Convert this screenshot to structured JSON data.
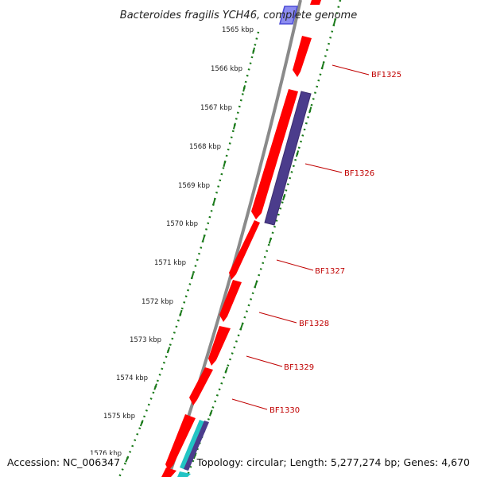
{
  "map": {
    "title": "Bacteroides fragilis YCH46, complete genome",
    "kbp_ticks": [
      "1565 kbp",
      "1566 kbp",
      "1567 kbp",
      "1568 kbp",
      "1569 kbp",
      "1570 kbp",
      "1571 kbp",
      "1572 kbp",
      "1573 kbp",
      "1574 kbp",
      "1575 kbp",
      "1576 kbp"
    ],
    "gene_labels": [
      "BF1325",
      "BF1326",
      "BF1327",
      "BF1328",
      "BF1329",
      "BF1330"
    ],
    "colors": {
      "backbone": "#8a8a8a",
      "cds_forward": "#ff0000",
      "cds_highlight": "#ff6666",
      "cds_purple": "#4b3c8c",
      "cds_cyan": "#22c4c4",
      "tick_green": "#1a7a1a",
      "label_red": "#c00000",
      "blue_feature": "#5a5ae6"
    }
  },
  "footer": {
    "accession": "Accession: NC_006347",
    "summary": "Topology: circular; Length: 5,277,274 bp; Genes: 4,670"
  }
}
